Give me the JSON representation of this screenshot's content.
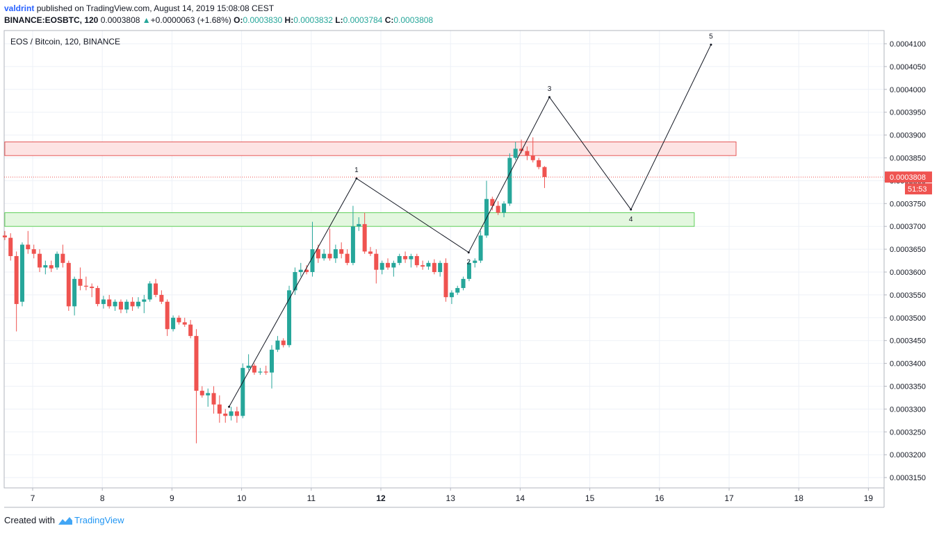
{
  "header": {
    "author": "valdrint",
    "published_text": "published on TradingView.com, August 14, 2019 15:08:08 CEST",
    "symbol": "BINANCE:EOSBTC, 120",
    "last": "0.0003808",
    "change": "+0.0000063 (+1.68%)",
    "o_label": "O:",
    "o_value": "0.0003830",
    "h_label": "H:",
    "h_value": "0.0003832",
    "l_label": "L:",
    "l_value": "0.0003784",
    "c_label": "C:",
    "c_value": "0.0003808"
  },
  "footer": {
    "created_with": "Created with",
    "brand": "TradingView"
  },
  "colors": {
    "up": "#26a69a",
    "down": "#ef5350",
    "resistance_fill": "#fde3e3",
    "resistance_stroke": "#e45757",
    "support_fill": "#e3f7df",
    "support_stroke": "#5fcf5a",
    "wave_line": "#131722",
    "grid": "#edf1f7"
  },
  "chart_data": {
    "type": "candlestick",
    "title": "EOS / Bitcoin, 120, BINANCE",
    "xlabel": "",
    "ylabel": "",
    "x_axis_ticks": [
      {
        "x": 7,
        "label": "7",
        "bold": false
      },
      {
        "x": 8,
        "label": "8",
        "bold": false
      },
      {
        "x": 9,
        "label": "9",
        "bold": false
      },
      {
        "x": 10,
        "label": "10",
        "bold": false
      },
      {
        "x": 11,
        "label": "11",
        "bold": false
      },
      {
        "x": 12,
        "label": "12",
        "bold": true
      },
      {
        "x": 13,
        "label": "13",
        "bold": false
      },
      {
        "x": 14,
        "label": "14",
        "bold": false
      },
      {
        "x": 15,
        "label": "15",
        "bold": false
      },
      {
        "x": 16,
        "label": "16",
        "bold": false
      },
      {
        "x": 17,
        "label": "17",
        "bold": false
      },
      {
        "x": 18,
        "label": "18",
        "bold": false
      },
      {
        "x": 19,
        "label": "19",
        "bold": false
      }
    ],
    "xlim": [
      6.6,
      19.25
    ],
    "ylim": [
      0.00031275,
      0.00041775
    ],
    "y_axis_ticks": [
      "0.0003150",
      "0.0003200",
      "0.0003250",
      "0.0003300",
      "0.0003350",
      "0.0003400",
      "0.0003450",
      "0.0003500",
      "0.0003550",
      "0.0003600",
      "0.0003650",
      "0.0003700",
      "0.0003750",
      "0.0003800",
      "0.0003850",
      "0.0003900",
      "0.0003950",
      "0.0004000",
      "0.0004050",
      "0.0004100"
    ],
    "grid": true,
    "last_price_label": "0.0003808",
    "countdown_label": "51:53",
    "last_price": 0.0003808,
    "candles": [
      {
        "t": 6.6,
        "o": 0.000368,
        "h": 0.000369,
        "l": 0.000367,
        "c": 0.0003676
      },
      {
        "t": 6.683,
        "o": 0.0003675,
        "h": 0.0003685,
        "l": 0.0003625,
        "c": 0.0003635
      },
      {
        "t": 6.767,
        "o": 0.0003635,
        "h": 0.0003645,
        "l": 0.000347,
        "c": 0.000353
      },
      {
        "t": 6.85,
        "o": 0.0003535,
        "h": 0.0003665,
        "l": 0.0003525,
        "c": 0.000366
      },
      {
        "t": 6.933,
        "o": 0.000366,
        "h": 0.000369,
        "l": 0.000364,
        "c": 0.000365
      },
      {
        "t": 7.017,
        "o": 0.000365,
        "h": 0.000366,
        "l": 0.000363,
        "c": 0.000364
      },
      {
        "t": 7.1,
        "o": 0.000364,
        "h": 0.000365,
        "l": 0.00036,
        "c": 0.000361
      },
      {
        "t": 7.183,
        "o": 0.000361,
        "h": 0.0003625,
        "l": 0.0003595,
        "c": 0.0003615
      },
      {
        "t": 7.267,
        "o": 0.0003615,
        "h": 0.0003625,
        "l": 0.00036,
        "c": 0.0003608
      },
      {
        "t": 7.35,
        "o": 0.000361,
        "h": 0.0003645,
        "l": 0.0003605,
        "c": 0.000364
      },
      {
        "t": 7.433,
        "o": 0.000364,
        "h": 0.000366,
        "l": 0.000361,
        "c": 0.000362
      },
      {
        "t": 7.517,
        "o": 0.000362,
        "h": 0.0003625,
        "l": 0.0003515,
        "c": 0.0003525
      },
      {
        "t": 7.6,
        "o": 0.0003525,
        "h": 0.000359,
        "l": 0.0003505,
        "c": 0.0003585
      },
      {
        "t": 7.683,
        "o": 0.0003585,
        "h": 0.000361,
        "l": 0.000356,
        "c": 0.000357
      },
      {
        "t": 7.767,
        "o": 0.000357,
        "h": 0.000359,
        "l": 0.000356,
        "c": 0.0003568
      },
      {
        "t": 7.85,
        "o": 0.0003568,
        "h": 0.0003575,
        "l": 0.0003545,
        "c": 0.0003565
      },
      {
        "t": 7.933,
        "o": 0.0003565,
        "h": 0.000357,
        "l": 0.0003525,
        "c": 0.000353
      },
      {
        "t": 8.017,
        "o": 0.000353,
        "h": 0.0003548,
        "l": 0.000352,
        "c": 0.000354
      },
      {
        "t": 8.1,
        "o": 0.000354,
        "h": 0.000355,
        "l": 0.000352,
        "c": 0.0003525
      },
      {
        "t": 8.183,
        "o": 0.0003525,
        "h": 0.000354,
        "l": 0.0003515,
        "c": 0.0003535
      },
      {
        "t": 8.267,
        "o": 0.0003535,
        "h": 0.000354,
        "l": 0.000351,
        "c": 0.0003518
      },
      {
        "t": 8.35,
        "o": 0.0003518,
        "h": 0.000354,
        "l": 0.000351,
        "c": 0.0003535
      },
      {
        "t": 8.433,
        "o": 0.0003535,
        "h": 0.0003545,
        "l": 0.0003515,
        "c": 0.0003525
      },
      {
        "t": 8.517,
        "o": 0.0003525,
        "h": 0.0003545,
        "l": 0.000352,
        "c": 0.0003535
      },
      {
        "t": 8.6,
        "o": 0.0003535,
        "h": 0.000355,
        "l": 0.000351,
        "c": 0.000354
      },
      {
        "t": 8.683,
        "o": 0.000354,
        "h": 0.000358,
        "l": 0.0003535,
        "c": 0.0003575
      },
      {
        "t": 8.767,
        "o": 0.0003575,
        "h": 0.0003585,
        "l": 0.0003545,
        "c": 0.000355
      },
      {
        "t": 8.85,
        "o": 0.000355,
        "h": 0.000356,
        "l": 0.000353,
        "c": 0.0003535
      },
      {
        "t": 8.933,
        "o": 0.0003535,
        "h": 0.000354,
        "l": 0.000346,
        "c": 0.0003475
      },
      {
        "t": 9.017,
        "o": 0.0003475,
        "h": 0.0003505,
        "l": 0.000347,
        "c": 0.00035
      },
      {
        "t": 9.1,
        "o": 0.00035,
        "h": 0.0003505,
        "l": 0.0003485,
        "c": 0.000349
      },
      {
        "t": 9.183,
        "o": 0.000349,
        "h": 0.00035,
        "l": 0.000348,
        "c": 0.0003485
      },
      {
        "t": 9.267,
        "o": 0.0003485,
        "h": 0.0003495,
        "l": 0.0003455,
        "c": 0.000346
      },
      {
        "t": 9.35,
        "o": 0.000346,
        "h": 0.0003475,
        "l": 0.0003225,
        "c": 0.000334
      },
      {
        "t": 9.433,
        "o": 0.000334,
        "h": 0.000335,
        "l": 0.0003325,
        "c": 0.000333
      },
      {
        "t": 9.517,
        "o": 0.000333,
        "h": 0.0003345,
        "l": 0.0003305,
        "c": 0.0003335
      },
      {
        "t": 9.6,
        "o": 0.0003335,
        "h": 0.000335,
        "l": 0.000329,
        "c": 0.000331
      },
      {
        "t": 9.683,
        "o": 0.000331,
        "h": 0.000333,
        "l": 0.000327,
        "c": 0.000329
      },
      {
        "t": 9.767,
        "o": 0.000329,
        "h": 0.00033,
        "l": 0.000327,
        "c": 0.0003285
      },
      {
        "t": 9.85,
        "o": 0.0003285,
        "h": 0.0003305,
        "l": 0.0003275,
        "c": 0.0003295
      },
      {
        "t": 9.933,
        "o": 0.0003295,
        "h": 0.0003305,
        "l": 0.000327,
        "c": 0.0003285
      },
      {
        "t": 10.017,
        "o": 0.0003285,
        "h": 0.00034,
        "l": 0.000328,
        "c": 0.000339
      },
      {
        "t": 10.1,
        "o": 0.000339,
        "h": 0.000342,
        "l": 0.0003385,
        "c": 0.0003395
      },
      {
        "t": 10.183,
        "o": 0.0003395,
        "h": 0.00034,
        "l": 0.0003375,
        "c": 0.000338
      },
      {
        "t": 10.267,
        "o": 0.000338,
        "h": 0.000339,
        "l": 0.0003375,
        "c": 0.0003382
      },
      {
        "t": 10.35,
        "o": 0.0003382,
        "h": 0.0003395,
        "l": 0.0003375,
        "c": 0.000338
      },
      {
        "t": 10.433,
        "o": 0.000338,
        "h": 0.000344,
        "l": 0.0003345,
        "c": 0.000343
      },
      {
        "t": 10.517,
        "o": 0.000343,
        "h": 0.000346,
        "l": 0.0003425,
        "c": 0.000345
      },
      {
        "t": 10.6,
        "o": 0.000345,
        "h": 0.0003455,
        "l": 0.0003435,
        "c": 0.000344
      },
      {
        "t": 10.683,
        "o": 0.000344,
        "h": 0.000357,
        "l": 0.0003435,
        "c": 0.000356
      },
      {
        "t": 10.767,
        "o": 0.000356,
        "h": 0.000361,
        "l": 0.000355,
        "c": 0.00036
      },
      {
        "t": 10.85,
        "o": 0.00036,
        "h": 0.000362,
        "l": 0.000359,
        "c": 0.0003605
      },
      {
        "t": 10.933,
        "o": 0.0003605,
        "h": 0.0003615,
        "l": 0.0003595,
        "c": 0.00036
      },
      {
        "t": 11.017,
        "o": 0.00036,
        "h": 0.000371,
        "l": 0.000359,
        "c": 0.000365
      },
      {
        "t": 11.1,
        "o": 0.000365,
        "h": 0.000366,
        "l": 0.000362,
        "c": 0.000363
      },
      {
        "t": 11.183,
        "o": 0.000363,
        "h": 0.000365,
        "l": 0.0003625,
        "c": 0.000364
      },
      {
        "t": 11.267,
        "o": 0.000364,
        "h": 0.0003695,
        "l": 0.0003625,
        "c": 0.000363
      },
      {
        "t": 11.35,
        "o": 0.000363,
        "h": 0.000366,
        "l": 0.000362,
        "c": 0.000365
      },
      {
        "t": 11.433,
        "o": 0.000365,
        "h": 0.0003665,
        "l": 0.000363,
        "c": 0.000364
      },
      {
        "t": 11.517,
        "o": 0.000364,
        "h": 0.000365,
        "l": 0.0003615,
        "c": 0.000362
      },
      {
        "t": 11.6,
        "o": 0.000362,
        "h": 0.0003745,
        "l": 0.0003615,
        "c": 0.00037
      },
      {
        "t": 11.683,
        "o": 0.00037,
        "h": 0.000372,
        "l": 0.000369,
        "c": 0.0003705
      },
      {
        "t": 11.767,
        "o": 0.0003705,
        "h": 0.000373,
        "l": 0.000364,
        "c": 0.0003645
      },
      {
        "t": 11.85,
        "o": 0.0003645,
        "h": 0.0003655,
        "l": 0.0003635,
        "c": 0.000364
      },
      {
        "t": 11.933,
        "o": 0.000364,
        "h": 0.000365,
        "l": 0.0003575,
        "c": 0.0003605
      },
      {
        "t": 12.017,
        "o": 0.0003605,
        "h": 0.0003625,
        "l": 0.0003595,
        "c": 0.000362
      },
      {
        "t": 12.1,
        "o": 0.000362,
        "h": 0.000363,
        "l": 0.0003605,
        "c": 0.000361
      },
      {
        "t": 12.183,
        "o": 0.000361,
        "h": 0.0003625,
        "l": 0.000359,
        "c": 0.000362
      },
      {
        "t": 12.267,
        "o": 0.000362,
        "h": 0.000364,
        "l": 0.0003615,
        "c": 0.0003635
      },
      {
        "t": 12.35,
        "o": 0.0003635,
        "h": 0.0003645,
        "l": 0.000362,
        "c": 0.0003628
      },
      {
        "t": 12.433,
        "o": 0.0003628,
        "h": 0.000364,
        "l": 0.000361,
        "c": 0.0003635
      },
      {
        "t": 12.517,
        "o": 0.0003635,
        "h": 0.000364,
        "l": 0.000361,
        "c": 0.0003615
      },
      {
        "t": 12.6,
        "o": 0.0003615,
        "h": 0.0003625,
        "l": 0.0003605,
        "c": 0.0003612
      },
      {
        "t": 12.683,
        "o": 0.0003612,
        "h": 0.0003625,
        "l": 0.0003605,
        "c": 0.000362
      },
      {
        "t": 12.767,
        "o": 0.000362,
        "h": 0.0003628,
        "l": 0.0003595,
        "c": 0.00036
      },
      {
        "t": 12.85,
        "o": 0.00036,
        "h": 0.0003625,
        "l": 0.000359,
        "c": 0.000362
      },
      {
        "t": 12.933,
        "o": 0.000362,
        "h": 0.000363,
        "l": 0.0003535,
        "c": 0.0003545
      },
      {
        "t": 13.017,
        "o": 0.0003545,
        "h": 0.000356,
        "l": 0.000353,
        "c": 0.0003555
      },
      {
        "t": 13.1,
        "o": 0.0003555,
        "h": 0.000357,
        "l": 0.000355,
        "c": 0.0003565
      },
      {
        "t": 13.183,
        "o": 0.0003565,
        "h": 0.000359,
        "l": 0.000356,
        "c": 0.0003585
      },
      {
        "t": 13.267,
        "o": 0.0003585,
        "h": 0.0003625,
        "l": 0.000358,
        "c": 0.000362
      },
      {
        "t": 13.35,
        "o": 0.000362,
        "h": 0.000363,
        "l": 0.000361,
        "c": 0.0003625
      },
      {
        "t": 13.433,
        "o": 0.0003625,
        "h": 0.000369,
        "l": 0.000362,
        "c": 0.000368
      },
      {
        "t": 13.517,
        "o": 0.000368,
        "h": 0.00038,
        "l": 0.0003675,
        "c": 0.000376
      },
      {
        "t": 13.6,
        "o": 0.000376,
        "h": 0.0003765,
        "l": 0.0003735,
        "c": 0.0003745
      },
      {
        "t": 13.683,
        "o": 0.0003745,
        "h": 0.0003755,
        "l": 0.0003725,
        "c": 0.000373
      },
      {
        "t": 13.767,
        "o": 0.000373,
        "h": 0.0003755,
        "l": 0.000372,
        "c": 0.000375
      },
      {
        "t": 13.85,
        "o": 0.000375,
        "h": 0.000386,
        "l": 0.0003745,
        "c": 0.000385
      },
      {
        "t": 13.933,
        "o": 0.000385,
        "h": 0.0003885,
        "l": 0.0003845,
        "c": 0.000387
      },
      {
        "t": 14.017,
        "o": 0.000387,
        "h": 0.000389,
        "l": 0.000386,
        "c": 0.0003865
      },
      {
        "t": 14.1,
        "o": 0.0003865,
        "h": 0.0003875,
        "l": 0.0003845,
        "c": 0.0003855
      },
      {
        "t": 14.183,
        "o": 0.0003855,
        "h": 0.0003895,
        "l": 0.000384,
        "c": 0.0003845
      },
      {
        "t": 14.267,
        "o": 0.0003845,
        "h": 0.000385,
        "l": 0.0003825,
        "c": 0.000383
      },
      {
        "t": 14.35,
        "o": 0.000383,
        "h": 0.0003832,
        "l": 0.0003784,
        "c": 0.0003808
      }
    ],
    "zones": [
      {
        "name": "resistance",
        "x_start": 6.6,
        "x_end": 17.1,
        "y_low": 0.0003855,
        "y_high": 0.0003885
      },
      {
        "name": "support",
        "x_start": 6.6,
        "x_end": 16.5,
        "y_low": 0.00037,
        "y_high": 0.000373
      }
    ],
    "wave_points": [
      {
        "label": "",
        "x": 9.82,
        "y": 0.0003305
      },
      {
        "label": "1",
        "x": 11.65,
        "y": 0.0003805
      },
      {
        "label": "2",
        "x": 13.26,
        "y": 0.0003643
      },
      {
        "label": "3",
        "x": 14.42,
        "y": 0.0003983
      },
      {
        "label": "4",
        "x": 15.59,
        "y": 0.0003737
      },
      {
        "label": "5",
        "x": 16.74,
        "y": 0.0004098
      }
    ]
  }
}
